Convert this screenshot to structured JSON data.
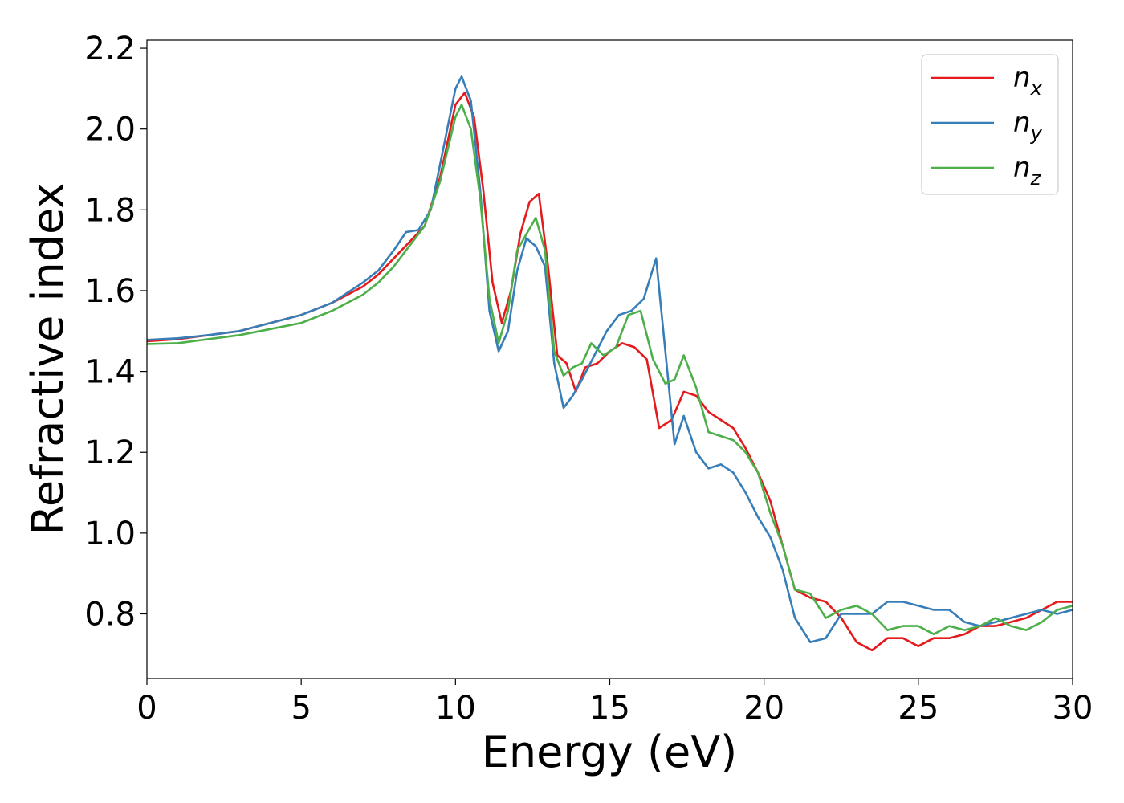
{
  "chart_data": {
    "type": "line",
    "title": "",
    "xlabel": "Energy (eV)",
    "ylabel": "Refractive index",
    "xlim": [
      0,
      30
    ],
    "ylim": [
      0.64,
      2.22
    ],
    "xticks": [
      "0",
      "5",
      "10",
      "15",
      "20",
      "25",
      "30"
    ],
    "yticks": [
      "0.8",
      "1.0",
      "1.2",
      "1.4",
      "1.6",
      "1.8",
      "2.0",
      "2.2"
    ],
    "grid": false,
    "legend_position": "top-right",
    "series": [
      {
        "name": "n_x",
        "label_base": "n",
        "label_sub": "x",
        "color": "#e41a1c",
        "x": [
          0,
          1,
          2,
          3,
          4,
          5,
          6,
          7,
          7.5,
          8,
          8.5,
          9,
          9.5,
          10,
          10.3,
          10.6,
          10.9,
          11.2,
          11.5,
          11.8,
          12.1,
          12.4,
          12.7,
          13.0,
          13.3,
          13.6,
          13.9,
          14.2,
          14.6,
          15.0,
          15.4,
          15.8,
          16.2,
          16.6,
          17.0,
          17.4,
          17.8,
          18.2,
          18.6,
          19.0,
          19.4,
          19.8,
          20.2,
          20.6,
          21.0,
          21.5,
          22.0,
          22.5,
          23.0,
          23.5,
          24.0,
          24.5,
          25.0,
          25.5,
          26.0,
          26.5,
          27.0,
          27.5,
          28.0,
          28.5,
          29.0,
          29.5,
          30.0
        ],
        "y": [
          1.475,
          1.48,
          1.49,
          1.5,
          1.52,
          1.54,
          1.57,
          1.61,
          1.64,
          1.68,
          1.72,
          1.76,
          1.88,
          2.06,
          2.09,
          2.03,
          1.85,
          1.62,
          1.52,
          1.6,
          1.74,
          1.82,
          1.84,
          1.66,
          1.44,
          1.42,
          1.35,
          1.41,
          1.42,
          1.45,
          1.47,
          1.46,
          1.43,
          1.26,
          1.28,
          1.35,
          1.34,
          1.3,
          1.28,
          1.26,
          1.21,
          1.15,
          1.08,
          0.97,
          0.86,
          0.84,
          0.83,
          0.79,
          0.73,
          0.71,
          0.74,
          0.74,
          0.72,
          0.74,
          0.74,
          0.75,
          0.77,
          0.77,
          0.78,
          0.79,
          0.81,
          0.83,
          0.83
        ]
      },
      {
        "name": "n_y",
        "label_base": "n",
        "label_sub": "y",
        "color": "#377eb8",
        "x": [
          0,
          1,
          2,
          3,
          4,
          5,
          6,
          7,
          7.5,
          8,
          8.4,
          8.8,
          9.2,
          9.6,
          10.0,
          10.2,
          10.5,
          10.8,
          11.1,
          11.4,
          11.7,
          12.0,
          12.3,
          12.6,
          12.9,
          13.2,
          13.5,
          13.8,
          14.1,
          14.5,
          14.9,
          15.3,
          15.7,
          16.1,
          16.5,
          16.8,
          17.1,
          17.4,
          17.8,
          18.2,
          18.6,
          19.0,
          19.4,
          19.8,
          20.2,
          20.6,
          21.0,
          21.5,
          22.0,
          22.5,
          23.0,
          23.5,
          24.0,
          24.5,
          25.0,
          25.5,
          26.0,
          26.5,
          27.0,
          27.5,
          28.0,
          28.5,
          29.0,
          29.5,
          30.0
        ],
        "y": [
          1.478,
          1.482,
          1.49,
          1.5,
          1.52,
          1.54,
          1.57,
          1.62,
          1.65,
          1.7,
          1.745,
          1.75,
          1.8,
          1.95,
          2.1,
          2.13,
          2.07,
          1.85,
          1.55,
          1.45,
          1.5,
          1.65,
          1.73,
          1.71,
          1.66,
          1.42,
          1.31,
          1.34,
          1.38,
          1.44,
          1.5,
          1.54,
          1.55,
          1.58,
          1.68,
          1.45,
          1.22,
          1.29,
          1.2,
          1.16,
          1.17,
          1.15,
          1.1,
          1.04,
          0.99,
          0.91,
          0.79,
          0.73,
          0.74,
          0.8,
          0.8,
          0.8,
          0.83,
          0.83,
          0.82,
          0.81,
          0.81,
          0.78,
          0.77,
          0.78,
          0.79,
          0.8,
          0.81,
          0.8,
          0.81
        ]
      },
      {
        "name": "n_z",
        "label_base": "n",
        "label_sub": "z",
        "color": "#4daf4a",
        "x": [
          0,
          1,
          2,
          3,
          4,
          5,
          6,
          7,
          7.5,
          8,
          8.5,
          9,
          9.5,
          10,
          10.2,
          10.5,
          10.8,
          11.1,
          11.4,
          11.7,
          12.0,
          12.3,
          12.6,
          12.9,
          13.2,
          13.5,
          13.8,
          14.1,
          14.4,
          14.8,
          15.2,
          15.6,
          16.0,
          16.4,
          16.8,
          17.1,
          17.4,
          17.8,
          18.2,
          18.6,
          19.0,
          19.4,
          19.8,
          20.2,
          20.6,
          21.0,
          21.5,
          22.0,
          22.5,
          23.0,
          23.5,
          24.0,
          24.5,
          25.0,
          25.5,
          26.0,
          26.5,
          27.0,
          27.5,
          28.0,
          28.5,
          29.0,
          29.5,
          30.0
        ],
        "y": [
          1.468,
          1.47,
          1.48,
          1.49,
          1.505,
          1.52,
          1.55,
          1.59,
          1.62,
          1.66,
          1.71,
          1.76,
          1.87,
          2.03,
          2.06,
          2.0,
          1.83,
          1.58,
          1.47,
          1.55,
          1.7,
          1.74,
          1.78,
          1.7,
          1.45,
          1.39,
          1.41,
          1.42,
          1.47,
          1.44,
          1.46,
          1.54,
          1.55,
          1.43,
          1.37,
          1.38,
          1.44,
          1.36,
          1.25,
          1.24,
          1.23,
          1.2,
          1.15,
          1.05,
          0.97,
          0.86,
          0.85,
          0.79,
          0.81,
          0.82,
          0.8,
          0.76,
          0.77,
          0.77,
          0.75,
          0.77,
          0.76,
          0.77,
          0.79,
          0.77,
          0.76,
          0.78,
          0.81,
          0.82
        ]
      }
    ]
  }
}
